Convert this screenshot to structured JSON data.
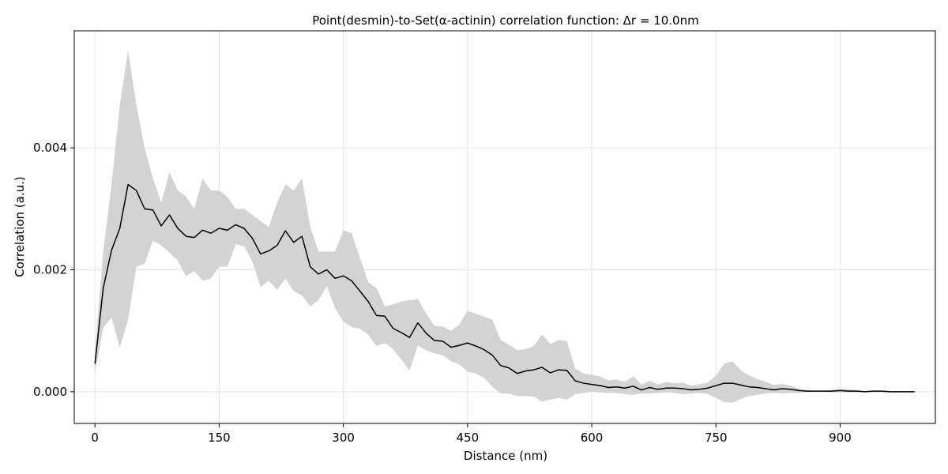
{
  "chart_data": {
    "type": "line",
    "title": "Point(desmin)-to-Set(α-actinin) correlation function: Δr = 10.0nm",
    "xlabel": "Distance (nm)",
    "ylabel": "Correlation (a.u.)",
    "xlim": [
      -25,
      1015
    ],
    "ylim": [
      -0.00052,
      0.00592
    ],
    "x_ticks": [
      0,
      150,
      300,
      450,
      600,
      750,
      900
    ],
    "x_tick_labels": [
      "0",
      "150",
      "300",
      "450",
      "600",
      "750",
      "900"
    ],
    "y_ticks": [
      0.0,
      0.002,
      0.004
    ],
    "y_tick_labels": [
      "0.000",
      "0.002",
      "0.004"
    ],
    "grid": true,
    "series": [
      {
        "type": "line",
        "color": "#000000",
        "x": [
          0,
          10,
          20,
          30,
          40,
          50,
          60,
          70,
          80,
          90,
          100,
          110,
          120,
          130,
          140,
          150,
          160,
          170,
          180,
          190,
          200,
          210,
          220,
          230,
          240,
          250,
          260,
          270,
          280,
          290,
          300,
          310,
          320,
          330,
          340,
          350,
          360,
          370,
          380,
          390,
          400,
          410,
          420,
          430,
          440,
          450,
          460,
          470,
          480,
          490,
          500,
          510,
          520,
          530,
          540,
          550,
          560,
          570,
          580,
          590,
          600,
          610,
          620,
          630,
          640,
          650,
          660,
          670,
          680,
          690,
          700,
          710,
          720,
          730,
          740,
          750,
          760,
          770,
          780,
          790,
          800,
          810,
          820,
          830,
          840,
          850,
          860,
          870,
          880,
          890,
          900,
          910,
          920,
          930,
          940,
          950,
          960,
          970,
          980,
          990
        ],
        "y": [
          0.00046,
          0.0017,
          0.00232,
          0.00268,
          0.0034,
          0.0033,
          0.003,
          0.00298,
          0.00272,
          0.0029,
          0.00268,
          0.00255,
          0.00253,
          0.00265,
          0.0026,
          0.00268,
          0.00265,
          0.00274,
          0.00268,
          0.00252,
          0.00226,
          0.00231,
          0.0024,
          0.00264,
          0.00245,
          0.00255,
          0.00205,
          0.00193,
          0.002,
          0.00186,
          0.0019,
          0.00182,
          0.00165,
          0.00148,
          0.00125,
          0.00124,
          0.00104,
          0.00097,
          0.00089,
          0.00113,
          0.00096,
          0.00084,
          0.00083,
          0.00073,
          0.00076,
          0.0008,
          0.00075,
          0.00069,
          0.0006,
          0.00043,
          0.00039,
          0.0003,
          0.00034,
          0.00036,
          0.0004,
          0.00031,
          0.00036,
          0.00035,
          0.00018,
          0.00014,
          0.00012,
          0.0001,
          7e-05,
          8e-05,
          6e-05,
          9e-05,
          3e-05,
          7e-05,
          4e-05,
          6e-05,
          6e-05,
          5e-05,
          3e-05,
          4e-05,
          6e-05,
          0.0001,
          0.00014,
          0.00014,
          0.00011,
          8e-05,
          7e-05,
          5e-05,
          3e-05,
          5e-05,
          4e-05,
          2e-05,
          1e-05,
          1e-05,
          1e-05,
          1e-05,
          2e-05,
          1e-05,
          1e-05,
          0.0,
          1e-05,
          1e-05,
          0.0,
          0.0,
          0.0,
          0.0
        ]
      },
      {
        "type": "band",
        "color": "#d3d3d3",
        "x": [
          0,
          10,
          20,
          30,
          40,
          50,
          60,
          70,
          80,
          90,
          100,
          110,
          120,
          130,
          140,
          150,
          160,
          170,
          180,
          190,
          200,
          210,
          220,
          230,
          240,
          250,
          260,
          270,
          280,
          290,
          300,
          310,
          320,
          330,
          340,
          350,
          360,
          370,
          380,
          390,
          400,
          410,
          420,
          430,
          440,
          450,
          460,
          470,
          480,
          490,
          500,
          510,
          520,
          530,
          540,
          550,
          560,
          570,
          580,
          590,
          600,
          610,
          620,
          630,
          640,
          650,
          660,
          670,
          680,
          690,
          700,
          710,
          720,
          730,
          740,
          750,
          760,
          770,
          780,
          790,
          800,
          810,
          820,
          830,
          840,
          850,
          860,
          870,
          880,
          890,
          900,
          910,
          920,
          930,
          940,
          950,
          960,
          970,
          980,
          990
        ],
        "upper": [
          0.00065,
          0.0023,
          0.0034,
          0.0047,
          0.0056,
          0.0047,
          0.004,
          0.0035,
          0.0031,
          0.0036,
          0.0033,
          0.0032,
          0.003,
          0.0035,
          0.0033,
          0.0033,
          0.0032,
          0.003,
          0.003,
          0.0029,
          0.0028,
          0.0027,
          0.0031,
          0.0034,
          0.0033,
          0.0035,
          0.0027,
          0.0023,
          0.0023,
          0.0023,
          0.00265,
          0.0026,
          0.0022,
          0.0018,
          0.0017,
          0.0014,
          0.00143,
          0.00148,
          0.0015,
          0.00152,
          0.00128,
          0.00108,
          0.00107,
          0.001,
          0.0011,
          0.00133,
          0.00128,
          0.00123,
          0.00118,
          0.00085,
          0.00077,
          0.00068,
          0.0007,
          0.00075,
          0.00094,
          0.00078,
          0.00085,
          0.00083,
          0.00038,
          0.0003,
          0.00028,
          0.00025,
          0.00019,
          0.0002,
          0.00016,
          0.00025,
          0.00012,
          0.00018,
          0.00012,
          0.00016,
          0.00014,
          0.00015,
          0.0001,
          0.00012,
          0.00015,
          0.00026,
          0.00046,
          0.0005,
          0.00035,
          0.00027,
          0.00021,
          0.00016,
          0.00011,
          0.00013,
          0.0001,
          5e-05,
          3e-05,
          2e-05,
          2e-05,
          3e-05,
          5e-05,
          4e-05,
          3e-05,
          1e-05,
          2e-05,
          2e-05,
          1e-05,
          1e-05,
          1e-05,
          1e-05
        ],
        "lower": [
          0.0003,
          0.00105,
          0.00122,
          0.00072,
          0.00118,
          0.00205,
          0.0021,
          0.00248,
          0.0024,
          0.00228,
          0.00215,
          0.0019,
          0.00198,
          0.00182,
          0.00186,
          0.00205,
          0.00205,
          0.00242,
          0.00239,
          0.00214,
          0.00172,
          0.00182,
          0.00167,
          0.00186,
          0.00165,
          0.00158,
          0.0014,
          0.0015,
          0.00173,
          0.00137,
          0.00115,
          0.00106,
          0.00103,
          0.00094,
          0.00075,
          0.0008,
          0.0007,
          0.00053,
          0.00035,
          0.00076,
          0.00068,
          0.00063,
          0.0006,
          0.0005,
          0.00045,
          0.00033,
          0.0003,
          0.00023,
          8e-05,
          -3e-05,
          -3e-05,
          -7e-05,
          -7e-05,
          -8e-05,
          -0.00016,
          -0.00013,
          -0.0001,
          -0.00013,
          -4e-05,
          -2e-05,
          0.0,
          -1e-05,
          -2e-05,
          -2e-05,
          -4e-05,
          -5e-05,
          -3e-05,
          -3e-05,
          -2e-05,
          -1e-05,
          -2e-05,
          -4e-05,
          -3e-05,
          -2e-05,
          -4e-05,
          -0.0001,
          -0.00017,
          -0.00018,
          -0.00012,
          -7e-05,
          -5e-05,
          -3e-05,
          -2e-05,
          -3e-05,
          -2e-05,
          -2e-05,
          0.0,
          0.0,
          0.0,
          -1e-05,
          -1e-05,
          -1e-05,
          -1e-05,
          0.0,
          -1e-05,
          -1e-05,
          0.0,
          0.0,
          0.0,
          0.0
        ]
      }
    ]
  }
}
